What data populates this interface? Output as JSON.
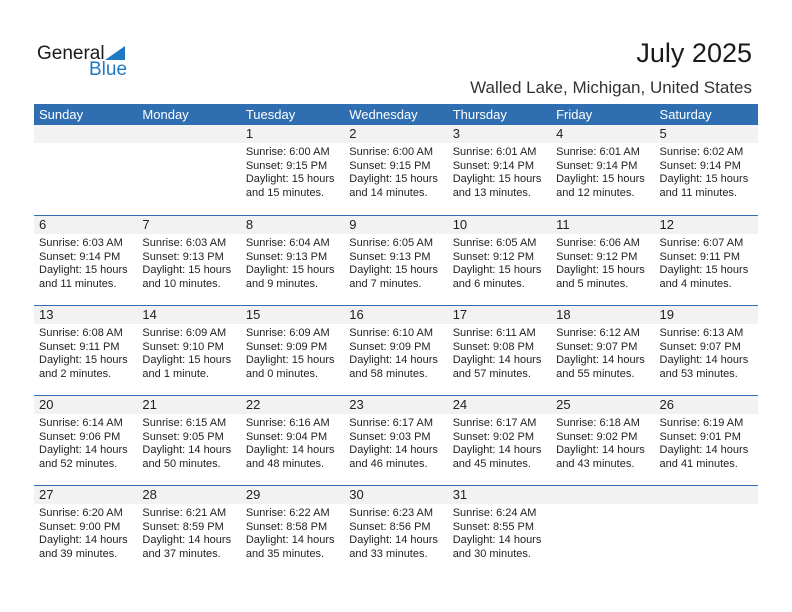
{
  "logo": {
    "general": "General",
    "blue": "Blue"
  },
  "title": "July 2025",
  "subtitle": "Walled Lake, Michigan, United States",
  "colors": {
    "header": "#2f6fb1",
    "date_strip": "#f2f2f2",
    "logo_blue": "#1e78c2"
  },
  "weekdays": [
    "Sunday",
    "Monday",
    "Tuesday",
    "Wednesday",
    "Thursday",
    "Friday",
    "Saturday"
  ],
  "weeks": [
    [
      null,
      null,
      {
        "day": "1",
        "sunrise": "Sunrise: 6:00 AM",
        "sunset": "Sunset: 9:15 PM",
        "daylight": "Daylight: 15 hours",
        "daylight2": "and 15 minutes."
      },
      {
        "day": "2",
        "sunrise": "Sunrise: 6:00 AM",
        "sunset": "Sunset: 9:15 PM",
        "daylight": "Daylight: 15 hours",
        "daylight2": "and 14 minutes."
      },
      {
        "day": "3",
        "sunrise": "Sunrise: 6:01 AM",
        "sunset": "Sunset: 9:14 PM",
        "daylight": "Daylight: 15 hours",
        "daylight2": "and 13 minutes."
      },
      {
        "day": "4",
        "sunrise": "Sunrise: 6:01 AM",
        "sunset": "Sunset: 9:14 PM",
        "daylight": "Daylight: 15 hours",
        "daylight2": "and 12 minutes."
      },
      {
        "day": "5",
        "sunrise": "Sunrise: 6:02 AM",
        "sunset": "Sunset: 9:14 PM",
        "daylight": "Daylight: 15 hours",
        "daylight2": "and 11 minutes."
      }
    ],
    [
      {
        "day": "6",
        "sunrise": "Sunrise: 6:03 AM",
        "sunset": "Sunset: 9:14 PM",
        "daylight": "Daylight: 15 hours",
        "daylight2": "and 11 minutes."
      },
      {
        "day": "7",
        "sunrise": "Sunrise: 6:03 AM",
        "sunset": "Sunset: 9:13 PM",
        "daylight": "Daylight: 15 hours",
        "daylight2": "and 10 minutes."
      },
      {
        "day": "8",
        "sunrise": "Sunrise: 6:04 AM",
        "sunset": "Sunset: 9:13 PM",
        "daylight": "Daylight: 15 hours",
        "daylight2": "and 9 minutes."
      },
      {
        "day": "9",
        "sunrise": "Sunrise: 6:05 AM",
        "sunset": "Sunset: 9:13 PM",
        "daylight": "Daylight: 15 hours",
        "daylight2": "and 7 minutes."
      },
      {
        "day": "10",
        "sunrise": "Sunrise: 6:05 AM",
        "sunset": "Sunset: 9:12 PM",
        "daylight": "Daylight: 15 hours",
        "daylight2": "and 6 minutes."
      },
      {
        "day": "11",
        "sunrise": "Sunrise: 6:06 AM",
        "sunset": "Sunset: 9:12 PM",
        "daylight": "Daylight: 15 hours",
        "daylight2": "and 5 minutes."
      },
      {
        "day": "12",
        "sunrise": "Sunrise: 6:07 AM",
        "sunset": "Sunset: 9:11 PM",
        "daylight": "Daylight: 15 hours",
        "daylight2": "and 4 minutes."
      }
    ],
    [
      {
        "day": "13",
        "sunrise": "Sunrise: 6:08 AM",
        "sunset": "Sunset: 9:11 PM",
        "daylight": "Daylight: 15 hours",
        "daylight2": "and 2 minutes."
      },
      {
        "day": "14",
        "sunrise": "Sunrise: 6:09 AM",
        "sunset": "Sunset: 9:10 PM",
        "daylight": "Daylight: 15 hours",
        "daylight2": "and 1 minute."
      },
      {
        "day": "15",
        "sunrise": "Sunrise: 6:09 AM",
        "sunset": "Sunset: 9:09 PM",
        "daylight": "Daylight: 15 hours",
        "daylight2": "and 0 minutes."
      },
      {
        "day": "16",
        "sunrise": "Sunrise: 6:10 AM",
        "sunset": "Sunset: 9:09 PM",
        "daylight": "Daylight: 14 hours",
        "daylight2": "and 58 minutes."
      },
      {
        "day": "17",
        "sunrise": "Sunrise: 6:11 AM",
        "sunset": "Sunset: 9:08 PM",
        "daylight": "Daylight: 14 hours",
        "daylight2": "and 57 minutes."
      },
      {
        "day": "18",
        "sunrise": "Sunrise: 6:12 AM",
        "sunset": "Sunset: 9:07 PM",
        "daylight": "Daylight: 14 hours",
        "daylight2": "and 55 minutes."
      },
      {
        "day": "19",
        "sunrise": "Sunrise: 6:13 AM",
        "sunset": "Sunset: 9:07 PM",
        "daylight": "Daylight: 14 hours",
        "daylight2": "and 53 minutes."
      }
    ],
    [
      {
        "day": "20",
        "sunrise": "Sunrise: 6:14 AM",
        "sunset": "Sunset: 9:06 PM",
        "daylight": "Daylight: 14 hours",
        "daylight2": "and 52 minutes."
      },
      {
        "day": "21",
        "sunrise": "Sunrise: 6:15 AM",
        "sunset": "Sunset: 9:05 PM",
        "daylight": "Daylight: 14 hours",
        "daylight2": "and 50 minutes."
      },
      {
        "day": "22",
        "sunrise": "Sunrise: 6:16 AM",
        "sunset": "Sunset: 9:04 PM",
        "daylight": "Daylight: 14 hours",
        "daylight2": "and 48 minutes."
      },
      {
        "day": "23",
        "sunrise": "Sunrise: 6:17 AM",
        "sunset": "Sunset: 9:03 PM",
        "daylight": "Daylight: 14 hours",
        "daylight2": "and 46 minutes."
      },
      {
        "day": "24",
        "sunrise": "Sunrise: 6:17 AM",
        "sunset": "Sunset: 9:02 PM",
        "daylight": "Daylight: 14 hours",
        "daylight2": "and 45 minutes."
      },
      {
        "day": "25",
        "sunrise": "Sunrise: 6:18 AM",
        "sunset": "Sunset: 9:02 PM",
        "daylight": "Daylight: 14 hours",
        "daylight2": "and 43 minutes."
      },
      {
        "day": "26",
        "sunrise": "Sunrise: 6:19 AM",
        "sunset": "Sunset: 9:01 PM",
        "daylight": "Daylight: 14 hours",
        "daylight2": "and 41 minutes."
      }
    ],
    [
      {
        "day": "27",
        "sunrise": "Sunrise: 6:20 AM",
        "sunset": "Sunset: 9:00 PM",
        "daylight": "Daylight: 14 hours",
        "daylight2": "and 39 minutes."
      },
      {
        "day": "28",
        "sunrise": "Sunrise: 6:21 AM",
        "sunset": "Sunset: 8:59 PM",
        "daylight": "Daylight: 14 hours",
        "daylight2": "and 37 minutes."
      },
      {
        "day": "29",
        "sunrise": "Sunrise: 6:22 AM",
        "sunset": "Sunset: 8:58 PM",
        "daylight": "Daylight: 14 hours",
        "daylight2": "and 35 minutes."
      },
      {
        "day": "30",
        "sunrise": "Sunrise: 6:23 AM",
        "sunset": "Sunset: 8:56 PM",
        "daylight": "Daylight: 14 hours",
        "daylight2": "and 33 minutes."
      },
      {
        "day": "31",
        "sunrise": "Sunrise: 6:24 AM",
        "sunset": "Sunset: 8:55 PM",
        "daylight": "Daylight: 14 hours",
        "daylight2": "and 30 minutes."
      },
      null,
      null
    ]
  ]
}
